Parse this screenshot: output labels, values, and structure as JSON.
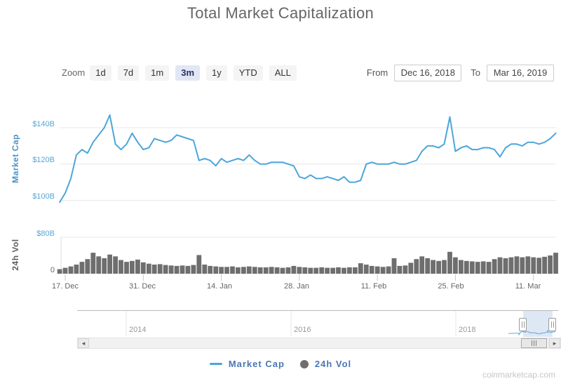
{
  "header": {
    "title": "Total Market Capitalization"
  },
  "toolbar": {
    "zoom_label": "Zoom",
    "zoom_buttons": [
      {
        "label": "1d",
        "selected": false
      },
      {
        "label": "7d",
        "selected": false
      },
      {
        "label": "1m",
        "selected": false
      },
      {
        "label": "3m",
        "selected": true
      },
      {
        "label": "1y",
        "selected": false
      },
      {
        "label": "YTD",
        "selected": false
      },
      {
        "label": "ALL",
        "selected": false
      }
    ],
    "from_label": "From",
    "from_value": "Dec 16, 2018",
    "to_label": "To",
    "to_value": "Mar 16, 2019"
  },
  "chart_data": {
    "type": "line",
    "title": "Total Market Capitalization",
    "x_start": "Dec 16, 2018",
    "x_end": "Mar 16, 2019",
    "x_tick_labels": [
      "17. Dec",
      "31. Dec",
      "14. Jan",
      "28. Jan",
      "11. Feb",
      "25. Feb",
      "11. Mar"
    ],
    "market_cap_axis": {
      "title": "Market Cap",
      "tick_labels": [
        "$100B",
        "$120B",
        "$140B"
      ],
      "tick_values": [
        100,
        120,
        140
      ],
      "unit": "$B"
    },
    "volume_axis": {
      "title": "24h Vol",
      "tick_labels": [
        "0",
        "$80B"
      ],
      "tick_values": [
        0,
        80
      ],
      "unit": "$B"
    },
    "series": [
      {
        "name": "Market Cap",
        "type": "line",
        "color": "#4ba6da",
        "unit": "$B",
        "values": [
          99,
          104,
          112,
          125,
          128,
          126,
          132,
          136,
          140,
          147,
          131,
          128,
          131,
          137,
          132,
          128,
          129,
          134,
          133,
          132,
          133,
          136,
          135,
          134,
          133,
          122,
          123,
          122,
          119,
          123,
          121,
          122,
          123,
          122,
          125,
          122,
          120,
          120,
          121,
          121,
          121,
          120,
          119,
          113,
          112,
          114,
          112,
          112,
          113,
          112,
          111,
          113,
          110,
          110,
          111,
          120,
          121,
          120,
          120,
          120,
          121,
          120,
          120,
          121,
          122,
          127,
          130,
          130,
          129,
          131,
          146,
          127,
          129,
          130,
          128,
          128,
          129,
          129,
          128,
          124,
          129,
          131,
          131,
          130,
          132,
          132,
          131,
          132,
          134,
          137
        ]
      },
      {
        "name": "24h Vol",
        "type": "bar",
        "color": "#6e6e6e",
        "unit": "$B",
        "values": [
          10,
          13,
          16,
          20,
          26,
          32,
          46,
          38,
          34,
          42,
          38,
          30,
          26,
          28,
          31,
          25,
          22,
          20,
          21,
          19,
          18,
          17,
          18,
          17,
          19,
          41,
          20,
          17,
          16,
          15,
          15,
          16,
          14,
          15,
          16,
          15,
          14,
          14,
          15,
          14,
          13,
          14,
          17,
          15,
          14,
          13,
          13,
          14,
          13,
          13,
          14,
          13,
          14,
          14,
          23,
          20,
          17,
          16,
          15,
          16,
          34,
          17,
          18,
          24,
          32,
          38,
          34,
          30,
          28,
          30,
          48,
          36,
          30,
          28,
          27,
          26,
          27,
          26,
          32,
          36,
          34,
          36,
          38,
          36,
          38,
          36,
          35,
          37,
          40,
          46
        ]
      }
    ],
    "navigator": {
      "year_labels": [
        "2014",
        "2016",
        "2018"
      ],
      "selected_range": "Dec 16, 2018 - Mar 16, 2019"
    },
    "grid": true,
    "legend_position": "bottom-center"
  },
  "legend": {
    "items": [
      {
        "label": "Market Cap",
        "marker": "line",
        "color": "#4ba6da"
      },
      {
        "label": "24h Vol",
        "marker": "circle",
        "color": "#6e6e6e"
      }
    ]
  },
  "watermark": "coinmarketcap.com",
  "colors": {
    "series_line": "#4ba6da",
    "volume_bars": "#6e6e6e",
    "grid": "#e7e7e7",
    "axis_value_labels": "#57a7d5",
    "market_cap_axis_title": "#4b93c5",
    "volume_axis_title": "#5e5e5e",
    "legend_text": "#4a77b4",
    "selected_button_bg": "#e2e7f6",
    "navigator_mask": "rgba(125,165,215,0.25)"
  }
}
